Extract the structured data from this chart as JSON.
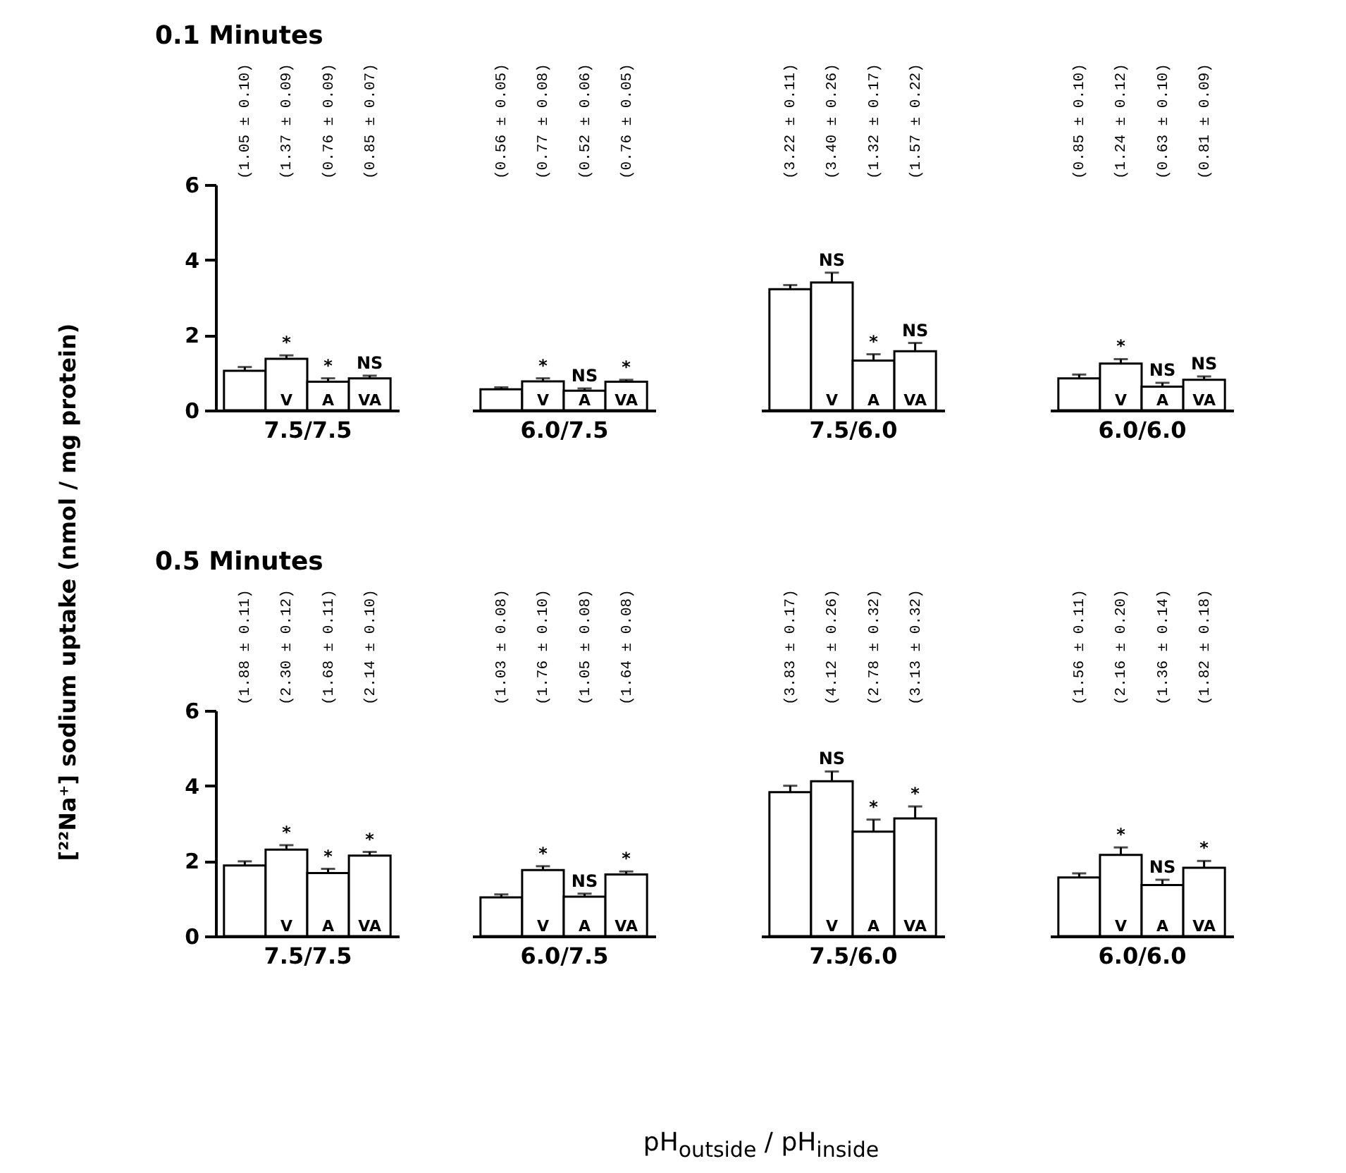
{
  "chart_data": [
    {
      "type": "bar",
      "title": "0.1 Minutes",
      "ylabel": "[²²Na⁺] sodium uptake    (nmol / mg protein)",
      "xlabel": "7.5/7.5",
      "categories": [
        null,
        "V",
        "A",
        "VA"
      ],
      "values": [
        1.05,
        1.37,
        0.76,
        0.85
      ],
      "errors": [
        0.1,
        0.09,
        0.09,
        0.07
      ],
      "value_labels": [
        "(1.05 ± 0.10)",
        "(1.37 ± 0.09)",
        "(0.76 ± 0.09)",
        "(0.85 ± 0.07)"
      ],
      "color": "#ffffff",
      "ylim": [
        0,
        6
      ],
      "yticks": [
        0,
        2,
        4,
        6
      ],
      "annotations": [
        {
          "text": "*",
          "x": "V",
          "y": 1.46
        },
        {
          "text": "*",
          "x": "A",
          "y": 0.85
        },
        {
          "text": "NS",
          "x": "VA",
          "y": 0.92
        }
      ]
    },
    {
      "type": "bar",
      "xlabel": "6.0/7.5",
      "categories": [
        null,
        "V",
        "A",
        "VA"
      ],
      "values": [
        0.56,
        0.77,
        0.52,
        0.76
      ],
      "errors": [
        0.05,
        0.08,
        0.06,
        0.05
      ],
      "value_labels": [
        "(0.56 ± 0.05)",
        "(0.77 ± 0.08)",
        "(0.52 ± 0.06)",
        "(0.76 ± 0.05)"
      ],
      "color": "#ffffff",
      "ylim": [
        0,
        6
      ],
      "tick_labels": "x",
      "annotations": [
        {
          "text": "*",
          "x": "V",
          "y": 0.85
        },
        {
          "text": "NS",
          "x": "A",
          "y": 0.58
        },
        {
          "text": "*",
          "x": "VA",
          "y": 0.81
        }
      ]
    },
    {
      "type": "bar",
      "xlabel": "7.5/6.0",
      "categories": [
        null,
        "V",
        "A",
        "VA"
      ],
      "values": [
        3.22,
        3.4,
        1.32,
        1.57
      ],
      "errors": [
        0.11,
        0.26,
        0.17,
        0.22
      ],
      "value_labels": [
        "(3.22 ± 0.11)",
        "(3.40 ± 0.26)",
        "(1.32 ± 0.17)",
        "(1.57 ± 0.22)"
      ],
      "color": "#ffffff",
      "ylim": [
        0,
        6
      ],
      "tick_labels": "x",
      "annotations": [
        {
          "text": "NS",
          "x": "V",
          "y": 3.66
        },
        {
          "text": "*",
          "x": "A",
          "y": 1.49
        },
        {
          "text": "NS",
          "x": "VA",
          "y": 1.79
        }
      ]
    },
    {
      "type": "bar",
      "xlabel": "6.0/6.0",
      "categories": [
        null,
        "V",
        "A",
        "VA"
      ],
      "values": [
        0.85,
        1.24,
        0.63,
        0.81
      ],
      "errors": [
        0.1,
        0.12,
        0.1,
        0.09
      ],
      "value_labels": [
        "(0.85 ± 0.10)",
        "(1.24 ± 0.12)",
        "(0.63 ± 0.10)",
        "(0.81 ± 0.09)"
      ],
      "color": "#ffffff",
      "ylim": [
        0,
        6
      ],
      "tick_labels": "x",
      "annotations": [
        {
          "text": "*",
          "x": "V",
          "y": 1.36
        },
        {
          "text": "NS",
          "x": "A",
          "y": 0.73
        },
        {
          "text": "NS",
          "x": "VA",
          "y": 0.9
        }
      ]
    },
    {
      "type": "bar",
      "title": "0.5 Minutes",
      "xlabel": "7.5/7.5",
      "categories": [
        null,
        "V",
        "A",
        "VA"
      ],
      "values": [
        1.88,
        2.3,
        1.68,
        2.14
      ],
      "errors": [
        0.11,
        0.12,
        0.11,
        0.1
      ],
      "value_labels": [
        "(1.88 ± 0.11)",
        "(2.30 ± 0.12)",
        "(1.68 ± 0.11)",
        "(2.14 ± 0.10)"
      ],
      "color": "#ffffff",
      "ylim": [
        0,
        6
      ],
      "yticks": [
        0,
        2,
        4,
        6
      ],
      "annotations": [
        {
          "text": "*",
          "x": "V",
          "y": 2.42
        },
        {
          "text": "*",
          "x": "A",
          "y": 1.79
        },
        {
          "text": "*",
          "x": "VA",
          "y": 2.24
        },
        "pH$_{outside}$ / pH$_{inside}$"
      ]
    },
    {
      "type": "bar",
      "xlabel": "6.0/7.5",
      "categories": [
        null,
        "V",
        "A",
        "VA"
      ],
      "values": [
        1.03,
        1.76,
        1.05,
        1.64
      ],
      "errors": [
        0.08,
        0.1,
        0.08,
        0.08
      ],
      "value_labels": [
        "(1.03 ± 0.08)",
        "(1.76 ± 0.10)",
        "(1.05 ± 0.08)",
        "(1.64 ± 0.08)"
      ],
      "color": "#ffffff",
      "ylim": [
        0,
        6
      ],
      "tick_labels": "x",
      "annotations": [
        {
          "text": "*",
          "x": "V",
          "y": 1.86
        },
        {
          "text": "NS",
          "x": "A",
          "y": 1.13
        },
        {
          "text": "*",
          "x": "VA",
          "y": 1.72
        }
      ]
    },
    {
      "type": "bar",
      "xlabel": "7.5/6.0",
      "categories": [
        null,
        "V",
        "A",
        "VA"
      ],
      "values": [
        3.83,
        4.12,
        2.78,
        3.13
      ],
      "errors": [
        0.17,
        0.26,
        0.32,
        0.32
      ],
      "value_labels": [
        "(3.83 ± 0.17)",
        "(4.12 ± 0.26)",
        "(2.78 ± 0.32)",
        "(3.13 ± 0.32)"
      ],
      "color": "#ffffff",
      "ylim": [
        0,
        6
      ],
      "tick_labels": "x",
      "annotations": [
        {
          "text": "NS",
          "x": "V",
          "y": 4.38
        },
        {
          "text": "*",
          "x": "A",
          "y": 3.1
        },
        {
          "text": "*",
          "x": "VA",
          "y": 3.45
        }
      ]
    },
    {
      "type": "bar",
      "xlabel": "6.0/6.0",
      "categories": [
        null,
        "V",
        "A",
        "VA"
      ],
      "values": [
        1.56,
        2.16,
        1.36,
        1.82
      ],
      "errors": [
        0.11,
        0.2,
        0.14,
        0.18
      ],
      "value_labels": [
        "(1.56 ± 0.11)",
        "(2.16 ± 0.20)",
        "(1.36 ± 0.14)",
        "(1.82 ± 0.18)"
      ],
      "color": "#ffffff",
      "ylim": [
        0,
        6
      ],
      "tick_labels": "x",
      "annotations": [
        {
          "text": "*",
          "x": "V",
          "y": 2.36
        },
        {
          "text": "NS",
          "x": "A",
          "y": 1.5
        },
        {
          "text": "*",
          "x": "VA",
          "y": 2.0
        }
      ]
    }
  ]
}
